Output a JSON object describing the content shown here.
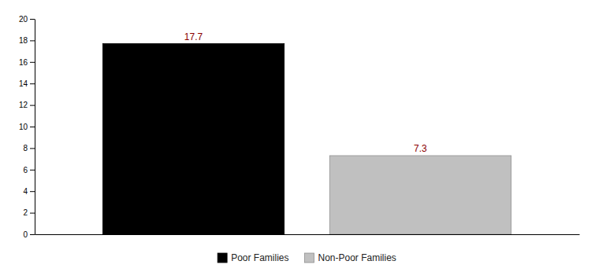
{
  "chart_data": {
    "type": "bar",
    "categories": [
      "Poor Families",
      "Non-Poor Families"
    ],
    "values": [
      17.7,
      7.3
    ],
    "colors": [
      "#000000",
      "#c0c0c0"
    ],
    "ylim": [
      0,
      20
    ],
    "yticks": [
      0,
      2,
      4,
      6,
      8,
      10,
      12,
      14,
      16,
      18,
      20
    ],
    "data_labels": true,
    "tick_labels": "y",
    "legend": "bottom"
  }
}
